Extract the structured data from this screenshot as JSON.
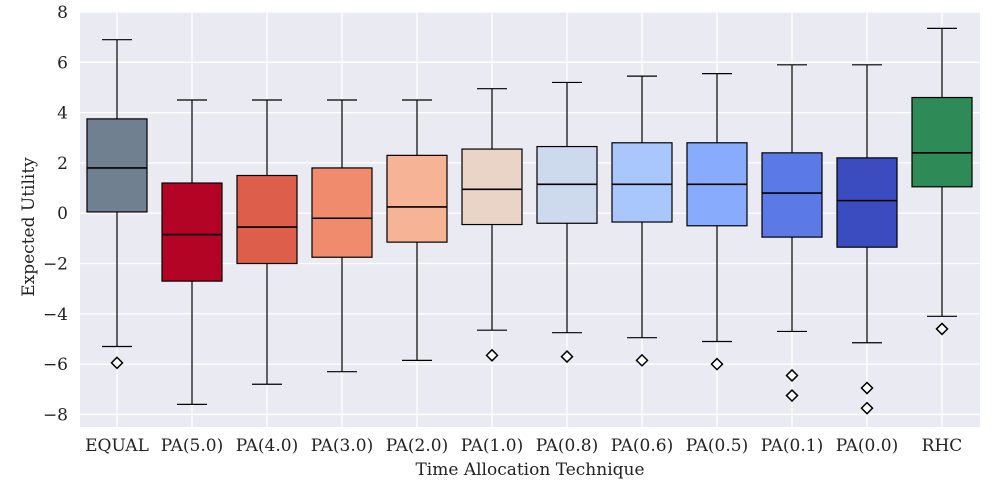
{
  "chart_data": {
    "type": "boxplot",
    "xlabel": "Time Allocation Technique",
    "ylabel": "Expected Utility",
    "ylim": [
      -8.5,
      8
    ],
    "yticks": [
      -8,
      -6,
      -4,
      -2,
      0,
      2,
      4,
      6,
      8
    ],
    "ytick_labels": [
      "−8",
      "−6",
      "−4",
      "−2",
      "0",
      "2",
      "4",
      "6",
      "8"
    ],
    "grid": true,
    "categories": [
      "EQUAL",
      "PA(5.0)",
      "PA(4.0)",
      "PA(3.0)",
      "PA(2.0)",
      "PA(1.0)",
      "PA(0.8)",
      "PA(0.6)",
      "PA(0.5)",
      "PA(0.1)",
      "PA(0.0)",
      "RHC"
    ],
    "boxes": [
      {
        "label": "EQUAL",
        "whisker_low": -5.3,
        "q1": 0.05,
        "median": 1.8,
        "q3": 3.75,
        "whisker_high": 6.9,
        "outliers": [
          -5.95
        ],
        "color": "#708090"
      },
      {
        "label": "PA(5.0)",
        "whisker_low": -7.6,
        "q1": -2.7,
        "median": -0.85,
        "q3": 1.2,
        "whisker_high": 4.5,
        "outliers": [],
        "color": "#b40426"
      },
      {
        "label": "PA(4.0)",
        "whisker_low": -6.8,
        "q1": -2.0,
        "median": -0.55,
        "q3": 1.5,
        "whisker_high": 4.5,
        "outliers": [],
        "color": "#dd5f4b"
      },
      {
        "label": "PA(3.0)",
        "whisker_low": -6.3,
        "q1": -1.75,
        "median": -0.2,
        "q3": 1.8,
        "whisker_high": 4.5,
        "outliers": [],
        "color": "#f08b6e"
      },
      {
        "label": "PA(2.0)",
        "whisker_low": -5.85,
        "q1": -1.15,
        "median": 0.25,
        "q3": 2.3,
        "whisker_high": 4.5,
        "outliers": [],
        "color": "#f7b396"
      },
      {
        "label": "PA(1.0)",
        "whisker_low": -4.65,
        "q1": -0.45,
        "median": 0.95,
        "q3": 2.55,
        "whisker_high": 4.95,
        "outliers": [
          -5.65
        ],
        "color": "#ead4c8"
      },
      {
        "label": "PA(0.8)",
        "whisker_low": -4.75,
        "q1": -0.4,
        "median": 1.15,
        "q3": 2.65,
        "whisker_high": 5.2,
        "outliers": [
          -5.7
        ],
        "color": "#cdd9ec"
      },
      {
        "label": "PA(0.6)",
        "whisker_low": -4.95,
        "q1": -0.35,
        "median": 1.15,
        "q3": 2.8,
        "whisker_high": 5.45,
        "outliers": [
          -5.85
        ],
        "color": "#aac7fd"
      },
      {
        "label": "PA(0.5)",
        "whisker_low": -5.1,
        "q1": -0.5,
        "median": 1.15,
        "q3": 2.8,
        "whisker_high": 5.55,
        "outliers": [
          -6.0
        ],
        "color": "#88abfd"
      },
      {
        "label": "PA(0.1)",
        "whisker_low": -4.7,
        "q1": -0.95,
        "median": 0.8,
        "q3": 2.4,
        "whisker_high": 5.9,
        "outliers": [
          -6.45,
          -7.25
        ],
        "color": "#5b7ae5"
      },
      {
        "label": "PA(0.0)",
        "whisker_low": -5.15,
        "q1": -1.35,
        "median": 0.5,
        "q3": 2.2,
        "whisker_high": 5.9,
        "outliers": [
          -6.95,
          -7.75
        ],
        "color": "#3b4cc0"
      },
      {
        "label": "RHC",
        "whisker_low": -4.1,
        "q1": 1.05,
        "median": 2.4,
        "q3": 4.6,
        "whisker_high": 7.35,
        "outliers": [
          -4.6
        ],
        "color": "#2e8b57"
      }
    ]
  }
}
